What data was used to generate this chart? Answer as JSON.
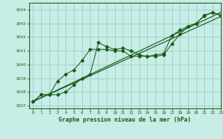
{
  "title": "Graphe pression niveau de la mer (hPa)",
  "background_color": "#c8ecE6",
  "grid_color": "#96cec8",
  "line_color": "#1a5c1a",
  "xlim": [
    -0.5,
    23
  ],
  "ylim": [
    1036.8,
    1044.5
  ],
  "yticks": [
    1037,
    1038,
    1039,
    1040,
    1041,
    1042,
    1043,
    1044
  ],
  "xticks": [
    0,
    1,
    2,
    3,
    4,
    5,
    6,
    7,
    8,
    9,
    10,
    11,
    12,
    13,
    14,
    15,
    16,
    17,
    18,
    19,
    20,
    21,
    22,
    23
  ],
  "series1_x": [
    0,
    1,
    2,
    3,
    4,
    5,
    6,
    7,
    8,
    9,
    10,
    11,
    12,
    13,
    14,
    15,
    16,
    17,
    18,
    19,
    20,
    21,
    22,
    23
  ],
  "series1_y": [
    1037.3,
    1037.8,
    1037.8,
    1037.8,
    1038.0,
    1038.5,
    1039.0,
    1039.3,
    1041.6,
    1041.3,
    1041.1,
    1041.2,
    1041.0,
    1040.7,
    1040.6,
    1040.6,
    1040.7,
    1041.5,
    1042.2,
    1042.8,
    1043.0,
    1043.55,
    1043.8,
    1043.55
  ],
  "series2_x": [
    0,
    1,
    2,
    3,
    4,
    5,
    6,
    7,
    8,
    9,
    10,
    11,
    12,
    13,
    14,
    15,
    16,
    17,
    18,
    19,
    20,
    21,
    22,
    23
  ],
  "series2_y": [
    1037.3,
    1037.8,
    1037.8,
    1038.8,
    1039.3,
    1039.6,
    1040.3,
    1041.1,
    1041.1,
    1041.1,
    1041.0,
    1041.0,
    1040.6,
    1040.6,
    1040.6,
    1040.7,
    1040.8,
    1042.1,
    1042.5,
    1042.8,
    1043.0,
    1043.6,
    1043.8,
    1043.6
  ],
  "trend1_x": [
    0,
    23
  ],
  "trend1_y": [
    1037.3,
    1043.5
  ],
  "trend2_x": [
    0,
    23
  ],
  "trend2_y": [
    1037.3,
    1043.8
  ]
}
